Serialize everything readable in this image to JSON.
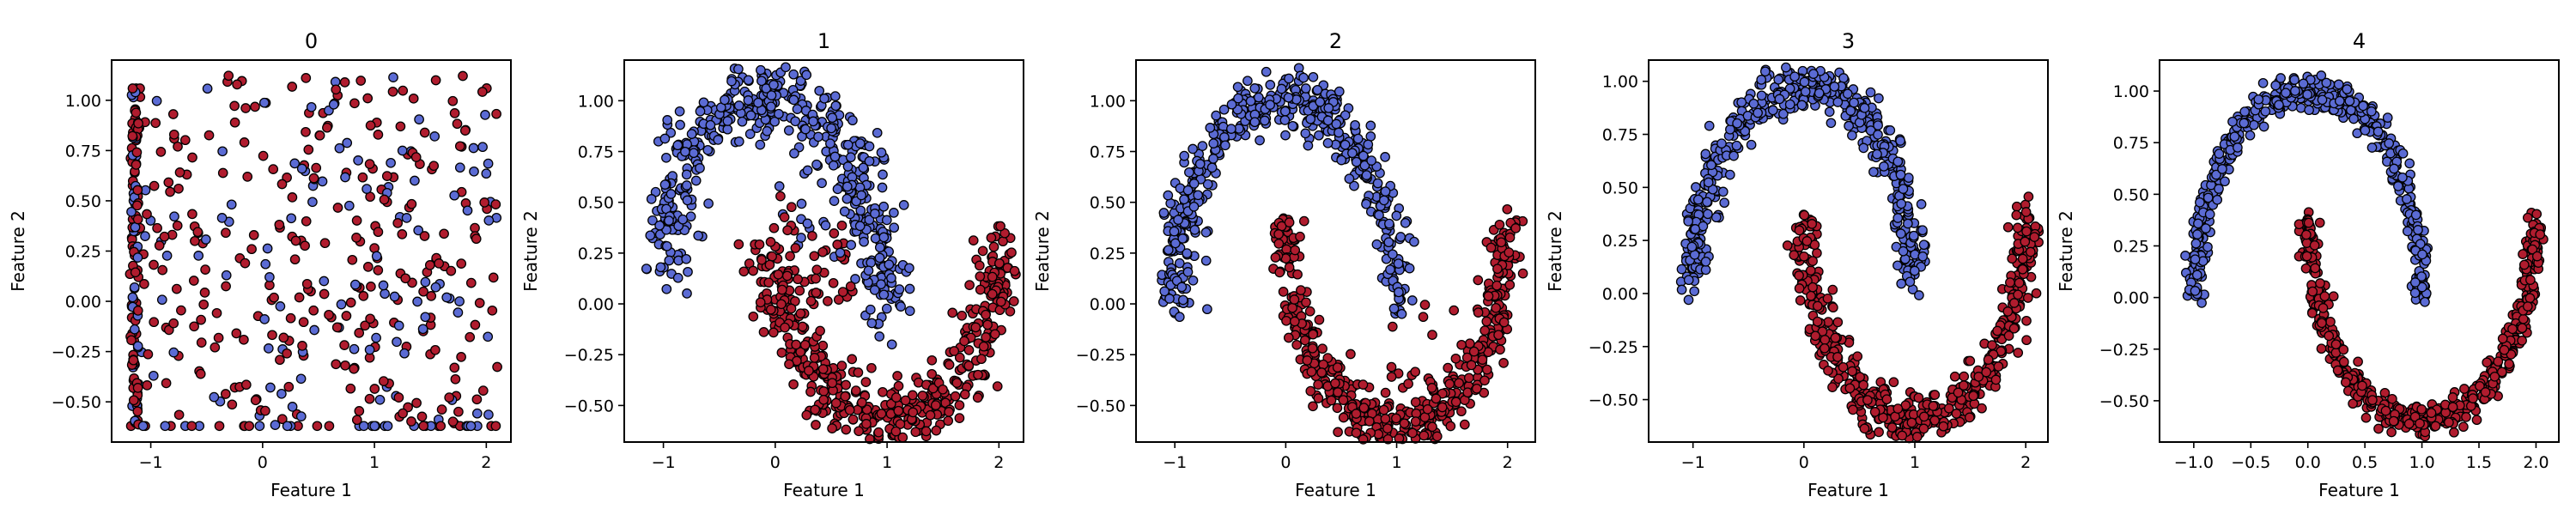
{
  "chart_data": [
    {
      "type": "scatter",
      "title": "0",
      "xlabel": "Feature 1",
      "ylabel": "Feature 2",
      "xlim": [
        -1.35,
        2.22
      ],
      "ylim": [
        -0.7,
        1.2
      ],
      "xticks": [
        -1,
        0,
        1,
        2
      ],
      "yticks": [
        -0.5,
        -0.25,
        0.0,
        0.25,
        0.5,
        0.75,
        1.0
      ],
      "xtick_labels": [
        "−1",
        "0",
        "1",
        "2"
      ],
      "ytick_labels": [
        "−0.50",
        "−0.25",
        "0.00",
        "0.25",
        "0.50",
        "0.75",
        "1.00"
      ],
      "grid": false,
      "series": [
        {
          "color": "#5b6bd4",
          "x_range": [
            -1.2,
            2.1
          ],
          "y_range": [
            -0.63,
            1.13
          ],
          "distribution": "uniform noise with dense column at x=-1.15 and row at y=-0.62"
        },
        {
          "color": "#b01c2e",
          "x_range": [
            -1.2,
            2.1
          ],
          "y_range": [
            -0.63,
            1.13
          ],
          "distribution": "uniform noise with dense column at x=-1.15 and row at y=-0.62"
        }
      ]
    },
    {
      "type": "scatter",
      "title": "1",
      "xlabel": "Feature 1",
      "ylabel": "Feature 2",
      "xlim": [
        -1.35,
        2.22
      ],
      "ylim": [
        -0.68,
        1.2
      ],
      "xticks": [
        -1,
        0,
        1,
        2
      ],
      "yticks": [
        -0.5,
        -0.25,
        0.0,
        0.25,
        0.5,
        0.75,
        1.0
      ],
      "xtick_labels": [
        "−1",
        "0",
        "1",
        "2"
      ],
      "ytick_labels": [
        "−0.50",
        "−0.25",
        "0.00",
        "0.25",
        "0.50",
        "0.75",
        "1.00"
      ],
      "grid": false,
      "series": [
        {
          "color": "#5b6bd4",
          "shape": "upper half-moon",
          "x_range": [
            -1.2,
            1.05
          ],
          "y_range": [
            -0.2,
            1.1
          ]
        },
        {
          "color": "#b01c2e",
          "shape": "lower half-moon",
          "x_range": [
            0.0,
            2.0
          ],
          "y_range": [
            -0.55,
            0.5
          ]
        }
      ]
    },
    {
      "type": "scatter",
      "title": "2",
      "xlabel": "Feature 1",
      "ylabel": "Feature 2",
      "xlim": [
        -1.35,
        2.25
      ],
      "ylim": [
        -0.68,
        1.2
      ],
      "xticks": [
        -1,
        0,
        1,
        2
      ],
      "yticks": [
        -0.5,
        -0.25,
        0.0,
        0.25,
        0.5,
        0.75,
        1.0
      ],
      "xtick_labels": [
        "−1",
        "0",
        "1",
        "2"
      ],
      "ytick_labels": [
        "−0.50",
        "−0.25",
        "0.00",
        "0.25",
        "0.50",
        "0.75",
        "1.00"
      ],
      "grid": false,
      "series": [
        {
          "color": "#5b6bd4",
          "shape": "upper half-moon",
          "x_range": [
            -1.2,
            1.1
          ],
          "y_range": [
            -0.25,
            1.15
          ]
        },
        {
          "color": "#b01c2e",
          "shape": "lower half-moon",
          "x_range": [
            0.0,
            2.1
          ],
          "y_range": [
            -0.6,
            0.55
          ]
        }
      ]
    },
    {
      "type": "scatter",
      "title": "3",
      "xlabel": "Feature 1",
      "ylabel": "Feature 2",
      "xlim": [
        -1.4,
        2.2
      ],
      "ylim": [
        -0.7,
        1.1
      ],
      "xticks": [
        -1,
        0,
        1,
        2
      ],
      "yticks": [
        -0.5,
        -0.25,
        0.0,
        0.25,
        0.5,
        0.75,
        1.0
      ],
      "xtick_labels": [
        "−1",
        "0",
        "1",
        "2"
      ],
      "ytick_labels": [
        "−0.50",
        "−0.25",
        "0.00",
        "0.25",
        "0.50",
        "0.75",
        "1.00"
      ],
      "grid": false,
      "series": [
        {
          "color": "#5b6bd4",
          "shape": "upper half-moon",
          "x_range": [
            -1.2,
            1.05
          ],
          "y_range": [
            -0.1,
            1.05
          ]
        },
        {
          "color": "#b01c2e",
          "shape": "lower half-moon",
          "x_range": [
            0.0,
            2.05
          ],
          "y_range": [
            -0.6,
            0.55
          ]
        }
      ]
    },
    {
      "type": "scatter",
      "title": "4",
      "xlabel": "Feature 1",
      "ylabel": "Feature 2",
      "xlim": [
        -1.3,
        2.2
      ],
      "ylim": [
        -0.7,
        1.15
      ],
      "xticks": [
        -1.0,
        -0.5,
        0.0,
        0.5,
        1.0,
        1.5,
        2.0
      ],
      "yticks": [
        -0.5,
        -0.25,
        0.0,
        0.25,
        0.5,
        0.75,
        1.0
      ],
      "xtick_labels": [
        "−1.0",
        "−0.5",
        "0.0",
        "0.5",
        "1.0",
        "1.5",
        "2.0"
      ],
      "ytick_labels": [
        "−0.50",
        "−0.25",
        "0.00",
        "0.25",
        "0.50",
        "0.75",
        "1.00"
      ],
      "grid": false,
      "series": [
        {
          "color": "#5b6bd4",
          "shape": "upper half-moon",
          "x_range": [
            -1.1,
            1.05
          ],
          "y_range": [
            -0.15,
            1.05
          ]
        },
        {
          "color": "#b01c2e",
          "shape": "lower half-moon",
          "x_range": [
            0.0,
            2.05
          ],
          "y_range": [
            -0.6,
            0.45
          ]
        }
      ]
    }
  ]
}
